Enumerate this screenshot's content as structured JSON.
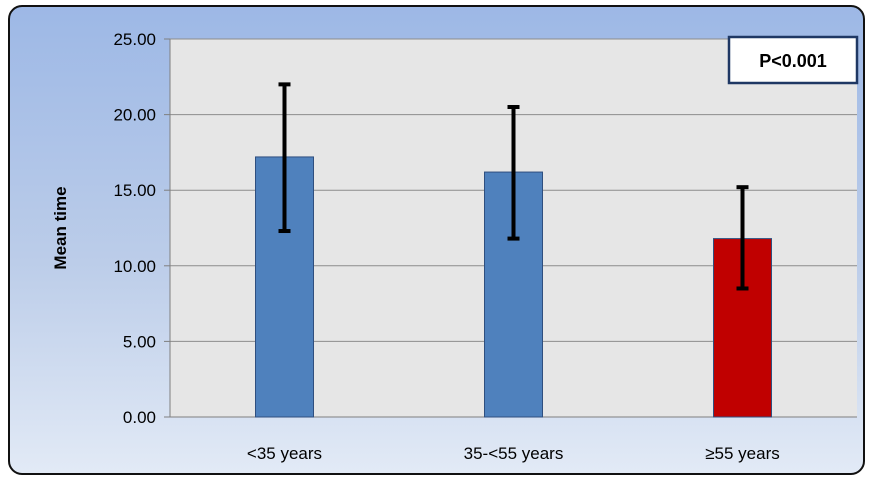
{
  "chart_data": {
    "type": "bar",
    "title": "",
    "xlabel": "",
    "ylabel": "Mean time",
    "ylim": [
      0,
      25
    ],
    "yticks": [
      "0.00",
      "5.00",
      "10.00",
      "15.00",
      "20.00",
      "25.00"
    ],
    "categories": [
      "<35 years",
      "35-<55 years",
      "≥55 years"
    ],
    "values": [
      17.2,
      16.2,
      11.8
    ],
    "error_low": [
      12.3,
      11.8,
      8.5
    ],
    "error_high": [
      22.0,
      20.5,
      15.2
    ],
    "bar_colors": [
      "#4f81bd",
      "#4f81bd",
      "#c00000"
    ],
    "grid": true,
    "annotation": "P<0.001"
  }
}
